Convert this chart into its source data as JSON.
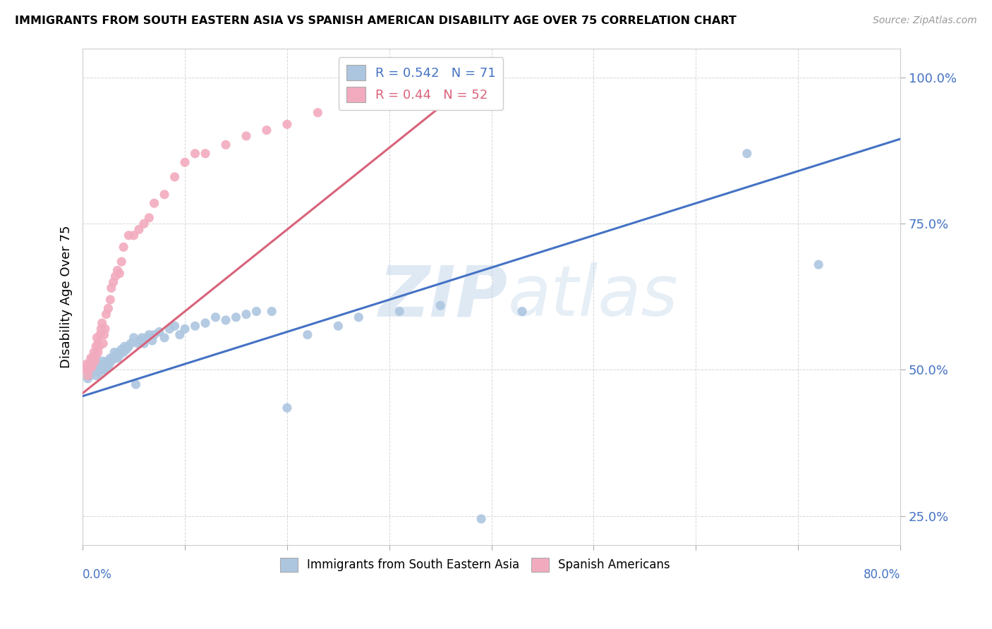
{
  "title": "IMMIGRANTS FROM SOUTH EASTERN ASIA VS SPANISH AMERICAN DISABILITY AGE OVER 75 CORRELATION CHART",
  "source": "Source: ZipAtlas.com",
  "ylabel": "Disability Age Over 75",
  "xlim": [
    0.0,
    0.8
  ],
  "ylim": [
    0.2,
    1.05
  ],
  "ytick_positions": [
    0.25,
    0.5,
    0.75,
    1.0
  ],
  "ytick_labels": [
    "25.0%",
    "50.0%",
    "75.0%",
    "100.0%"
  ],
  "blue_R": 0.542,
  "blue_N": 71,
  "pink_R": 0.44,
  "pink_N": 52,
  "blue_color": "#adc6e0",
  "pink_color": "#f2abbe",
  "blue_line_color": "#4472c4",
  "pink_line_color": "#d9627a",
  "watermark_zip": "ZIP",
  "watermark_atlas": "atlas",
  "legend_blue_label": "Immigrants from South Eastern Asia",
  "legend_pink_label": "Spanish Americans",
  "blue_x": [
    0.005,
    0.007,
    0.008,
    0.01,
    0.01,
    0.012,
    0.013,
    0.014,
    0.015,
    0.015,
    0.016,
    0.017,
    0.018,
    0.019,
    0.02,
    0.02,
    0.021,
    0.022,
    0.023,
    0.024,
    0.025,
    0.026,
    0.027,
    0.028,
    0.03,
    0.031,
    0.032,
    0.033,
    0.034,
    0.035,
    0.036,
    0.038,
    0.04,
    0.041,
    0.043,
    0.045,
    0.047,
    0.05,
    0.052,
    0.054,
    0.056,
    0.058,
    0.06,
    0.063,
    0.065,
    0.068,
    0.07,
    0.075,
    0.08,
    0.085,
    0.09,
    0.095,
    0.1,
    0.11,
    0.12,
    0.13,
    0.14,
    0.15,
    0.16,
    0.17,
    0.185,
    0.2,
    0.22,
    0.25,
    0.27,
    0.31,
    0.35,
    0.39,
    0.43,
    0.65,
    0.72
  ],
  "blue_y": [
    0.485,
    0.49,
    0.5,
    0.51,
    0.505,
    0.515,
    0.49,
    0.5,
    0.505,
    0.51,
    0.495,
    0.5,
    0.51,
    0.515,
    0.5,
    0.505,
    0.5,
    0.505,
    0.51,
    0.515,
    0.505,
    0.51,
    0.52,
    0.515,
    0.52,
    0.53,
    0.52,
    0.525,
    0.52,
    0.53,
    0.525,
    0.535,
    0.53,
    0.54,
    0.535,
    0.54,
    0.545,
    0.555,
    0.475,
    0.545,
    0.55,
    0.555,
    0.545,
    0.555,
    0.56,
    0.55,
    0.56,
    0.565,
    0.555,
    0.57,
    0.575,
    0.56,
    0.57,
    0.575,
    0.58,
    0.59,
    0.585,
    0.59,
    0.595,
    0.6,
    0.6,
    0.435,
    0.56,
    0.575,
    0.59,
    0.6,
    0.61,
    0.245,
    0.6,
    0.87,
    0.68
  ],
  "pink_x": [
    0.003,
    0.004,
    0.005,
    0.005,
    0.006,
    0.007,
    0.007,
    0.008,
    0.009,
    0.01,
    0.01,
    0.011,
    0.012,
    0.013,
    0.013,
    0.014,
    0.015,
    0.015,
    0.016,
    0.017,
    0.018,
    0.019,
    0.02,
    0.021,
    0.022,
    0.023,
    0.025,
    0.027,
    0.028,
    0.03,
    0.032,
    0.034,
    0.036,
    0.038,
    0.04,
    0.045,
    0.05,
    0.055,
    0.06,
    0.065,
    0.07,
    0.08,
    0.09,
    0.1,
    0.11,
    0.12,
    0.14,
    0.16,
    0.18,
    0.2,
    0.23,
    0.37
  ],
  "pink_y": [
    0.5,
    0.51,
    0.49,
    0.505,
    0.5,
    0.51,
    0.51,
    0.52,
    0.505,
    0.515,
    0.52,
    0.53,
    0.515,
    0.525,
    0.54,
    0.555,
    0.53,
    0.545,
    0.54,
    0.56,
    0.57,
    0.58,
    0.545,
    0.56,
    0.57,
    0.595,
    0.605,
    0.62,
    0.64,
    0.65,
    0.66,
    0.67,
    0.665,
    0.685,
    0.71,
    0.73,
    0.73,
    0.74,
    0.75,
    0.76,
    0.785,
    0.8,
    0.83,
    0.855,
    0.87,
    0.87,
    0.885,
    0.9,
    0.91,
    0.92,
    0.94,
    0.97
  ],
  "blue_trend_x0": 0.0,
  "blue_trend_x1": 0.8,
  "blue_trend_y0": 0.455,
  "blue_trend_y1": 0.895,
  "pink_trend_x0": 0.0,
  "pink_trend_x1": 0.4,
  "pink_trend_y0": 0.46,
  "pink_trend_y1": 1.02
}
